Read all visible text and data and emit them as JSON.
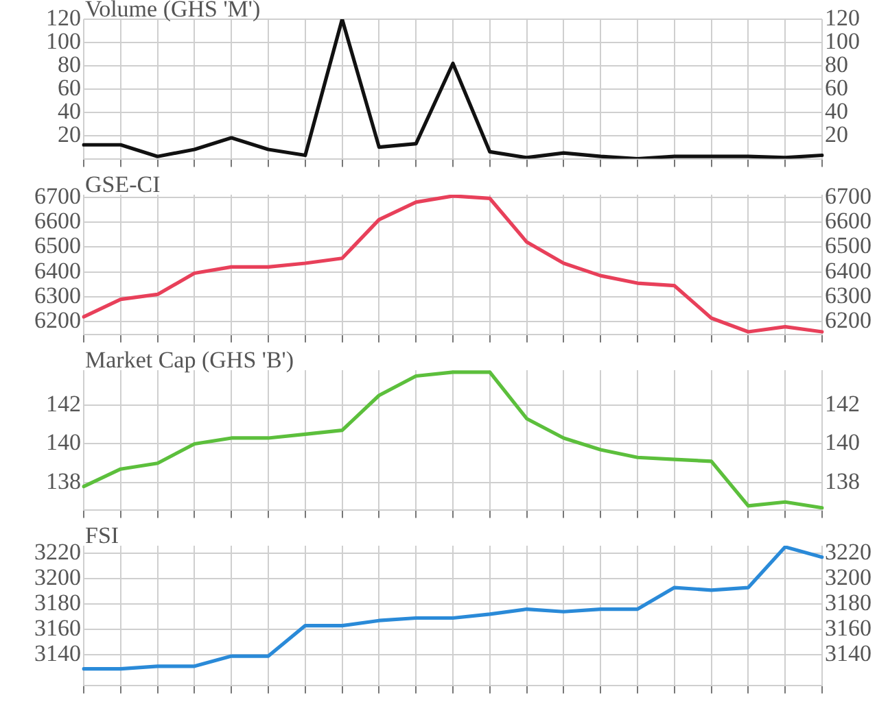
{
  "chart_data": [
    {
      "type": "line",
      "title": "Volume (GHS 'M')",
      "categories": [
        null,
        null,
        null,
        null,
        null,
        null,
        null,
        null,
        null,
        null,
        null,
        null,
        null,
        null,
        null,
        null,
        null,
        null,
        null,
        null,
        null
      ],
      "series": [
        {
          "color": "#111111",
          "values": [
            12,
            12,
            2,
            8,
            18,
            8,
            3,
            120,
            10,
            13,
            82,
            6,
            1,
            5,
            2,
            0,
            2,
            2,
            2,
            1,
            3
          ]
        }
      ],
      "ylim": [
        0,
        120
      ],
      "yticks": [
        20,
        40,
        60,
        80,
        100,
        120
      ],
      "y2lim": [
        0,
        120
      ],
      "y2ticks": [
        20,
        40,
        60,
        80,
        100,
        120
      ],
      "grid": true,
      "legend": false,
      "marker": "none",
      "tick_labels": "y"
    },
    {
      "type": "line",
      "title": "GSE-CI",
      "categories": [
        null,
        null,
        null,
        null,
        null,
        null,
        null,
        null,
        null,
        null,
        null,
        null,
        null,
        null,
        null,
        null,
        null,
        null,
        null,
        null,
        null
      ],
      "series": [
        {
          "color": "#e8405a",
          "values": [
            6220,
            6290,
            6310,
            6395,
            6420,
            6420,
            6435,
            6455,
            6610,
            6680,
            6705,
            6695,
            6520,
            6435,
            6385,
            6355,
            6345,
            6215,
            6160,
            6180,
            6160
          ]
        }
      ],
      "ylim": [
        6150,
        6710
      ],
      "yticks": [
        6200,
        6300,
        6400,
        6500,
        6600,
        6700
      ],
      "y2lim": [
        6150,
        6710
      ],
      "y2ticks": [
        6200,
        6300,
        6400,
        6500,
        6600,
        6700
      ],
      "grid": true,
      "legend": false,
      "marker": "none",
      "tick_labels": "y"
    },
    {
      "type": "line",
      "title": "Market Cap (GHS 'B')",
      "categories": [
        null,
        null,
        null,
        null,
        null,
        null,
        null,
        null,
        null,
        null,
        null,
        null,
        null,
        null,
        null,
        null,
        null,
        null,
        null,
        null,
        null
      ],
      "series": [
        {
          "color": "#5cbf3c",
          "values": [
            137.8,
            138.7,
            139.0,
            140.0,
            140.3,
            140.3,
            140.5,
            140.7,
            142.5,
            143.5,
            143.7,
            143.7,
            141.3,
            140.3,
            139.7,
            139.3,
            139.2,
            139.1,
            136.8,
            137.0,
            136.7
          ]
        }
      ],
      "ylim": [
        136.6,
        143.8
      ],
      "yticks": [
        138,
        140,
        142
      ],
      "y2lim": [
        136.6,
        143.8
      ],
      "y2ticks": [
        138,
        140,
        142
      ],
      "grid": true,
      "legend": false,
      "marker": "none",
      "tick_labels": "y"
    },
    {
      "type": "line",
      "title": "FSI",
      "categories": [
        null,
        null,
        null,
        null,
        null,
        null,
        null,
        null,
        null,
        null,
        null,
        null,
        null,
        null,
        null,
        null,
        null,
        null,
        null,
        null,
        null
      ],
      "series": [
        {
          "color": "#2a8ad8",
          "values": [
            3129,
            3129,
            3131,
            3131,
            3139,
            3139,
            3163,
            3163,
            3167,
            3169,
            3169,
            3172,
            3176,
            3174,
            3176,
            3176,
            3193,
            3191,
            3193,
            3225,
            3217
          ]
        }
      ],
      "ylim": [
        3116,
        3226
      ],
      "yticks": [
        3140,
        3160,
        3180,
        3200,
        3220
      ],
      "y2lim": [
        3116,
        3226
      ],
      "y2ticks": [
        3140,
        3160,
        3180,
        3200,
        3220
      ],
      "grid": true,
      "legend": false,
      "marker": "none",
      "tick_labels": "y"
    }
  ]
}
